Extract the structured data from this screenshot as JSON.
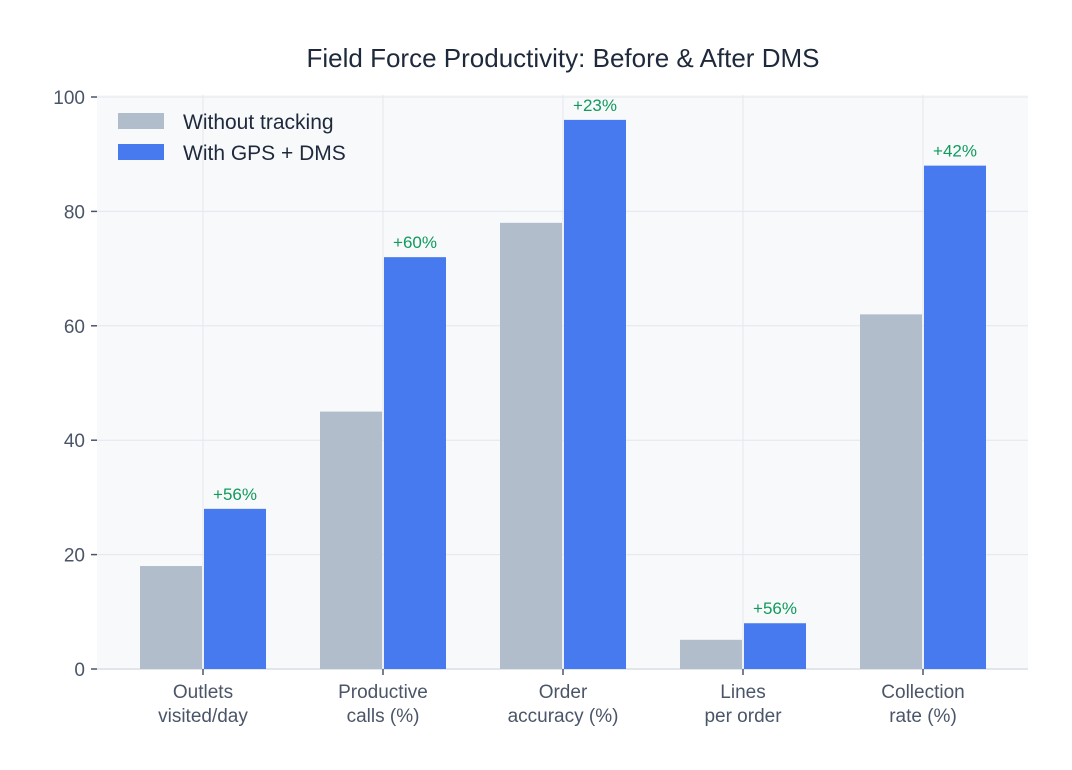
{
  "chart_data": {
    "type": "bar",
    "title": "Field Force Productivity: Before & After DMS",
    "xlabel": "",
    "ylabel": "",
    "categories": [
      [
        "Outlets",
        "visited/day"
      ],
      [
        "Productive",
        "calls (%)"
      ],
      [
        "Order",
        "accuracy (%)"
      ],
      [
        "Lines",
        "per order"
      ],
      [
        "Collection",
        "rate (%)"
      ]
    ],
    "series": [
      {
        "name": "Without tracking",
        "color": "#b2bdcc",
        "values": [
          18,
          45,
          78,
          5.1,
          62
        ]
      },
      {
        "name": "With GPS + DMS",
        "color": "#4779ef",
        "values": [
          28,
          72,
          96,
          8,
          88
        ]
      }
    ],
    "annotations": [
      "+56%",
      "+60%",
      "+23%",
      "+56%",
      "+42%"
    ],
    "annotation_color": "#109a5c",
    "ylim": [
      0,
      100
    ],
    "yticks": [
      0,
      20,
      40,
      60,
      80,
      100
    ],
    "grid": true,
    "legend": "top-left",
    "background": "#f8f9fb"
  }
}
